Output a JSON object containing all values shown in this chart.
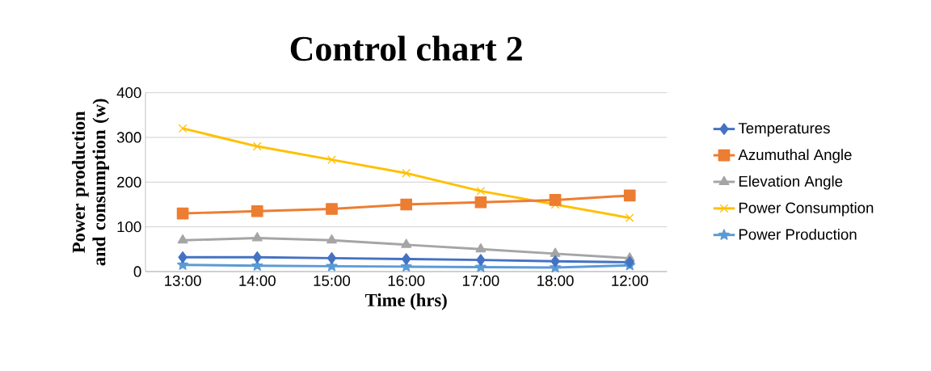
{
  "chart_data": {
    "type": "line",
    "title": "Control chart 2",
    "xlabel": "Time (hrs)",
    "ylabel": "Power production and consumption (w)",
    "categories": [
      "13:00",
      "14:00",
      "15:00",
      "16:00",
      "17:00",
      "18:00",
      "12:00"
    ],
    "series": [
      {
        "name": "Temperatures",
        "color": "#4472c4",
        "marker": "diamond",
        "values": [
          32,
          32,
          30,
          28,
          26,
          23,
          21
        ]
      },
      {
        "name": "Azumuthal Angle",
        "color": "#ed7d31",
        "marker": "square",
        "values": [
          130,
          135,
          140,
          150,
          155,
          160,
          170
        ]
      },
      {
        "name": "Elevation Angle",
        "color": "#a5a5a5",
        "marker": "triangle",
        "values": [
          70,
          75,
          70,
          60,
          50,
          40,
          30
        ]
      },
      {
        "name": "Power Consumption",
        "color": "#ffc000",
        "marker": "cross",
        "values": [
          320,
          280,
          250,
          220,
          180,
          150,
          120
        ]
      },
      {
        "name": "Power Production",
        "color": "#5b9bd5",
        "marker": "star",
        "values": [
          15,
          13,
          12,
          11,
          10,
          9,
          14
        ]
      }
    ],
    "ylim": [
      0,
      400
    ],
    "yticks": [
      0,
      100,
      200,
      300,
      400
    ],
    "grid": "y",
    "legend": "right",
    "line_style": "solid"
  }
}
